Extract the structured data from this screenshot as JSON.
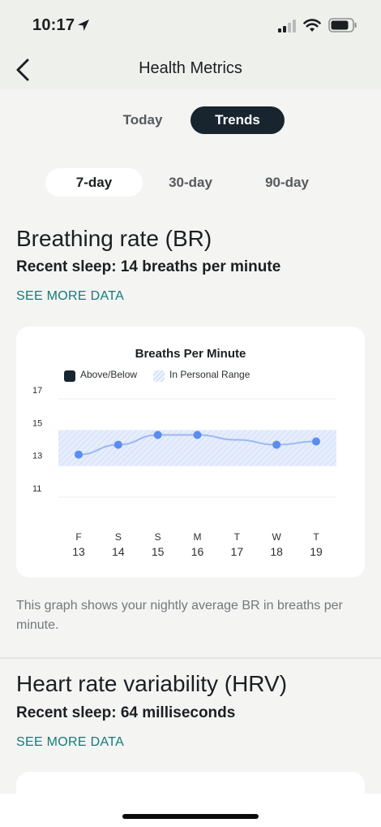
{
  "status_bar": {
    "time": "10:17"
  },
  "nav": {
    "title": "Health Metrics"
  },
  "view_tabs": [
    {
      "label": "Today",
      "selected": false
    },
    {
      "label": "Trends",
      "selected": true
    }
  ],
  "range_tabs": [
    {
      "label": "7-day",
      "selected": true
    },
    {
      "label": "30-day",
      "selected": false
    },
    {
      "label": "90-day",
      "selected": false
    }
  ],
  "br_section": {
    "title": "Breathing rate (BR)",
    "subtitle": "Recent sleep: 14 breaths per minute",
    "see_more": "SEE MORE DATA",
    "caption": "This graph shows your nightly average BR in breaths per minute."
  },
  "hrv_section": {
    "title": "Heart rate variability (HRV)",
    "subtitle": "Recent sleep: 64 milliseconds",
    "see_more": "SEE MORE DATA"
  },
  "colors": {
    "accent": "#137b79",
    "dark": "#18252f",
    "point": "#5b8def",
    "line": "#9bb8f2",
    "range_fill": "#e6edfc"
  },
  "chart_data": {
    "type": "line",
    "title": "Breaths Per Minute",
    "legend": [
      "Above/Below",
      "In Personal Range"
    ],
    "legend_position": "top",
    "x_days": [
      "F",
      "S",
      "S",
      "M",
      "T",
      "W",
      "T"
    ],
    "x_dates": [
      "13",
      "14",
      "15",
      "16",
      "17",
      "18",
      "19"
    ],
    "y_ticks": [
      "17",
      "15",
      "13",
      "11"
    ],
    "ylim": [
      11,
      17
    ],
    "personal_range": [
      12.9,
      15.1
    ],
    "series": [
      {
        "values": [
          13.6,
          14.2,
          14.8,
          14.8,
          null,
          14.2,
          14.4
        ]
      }
    ],
    "grid": true
  }
}
